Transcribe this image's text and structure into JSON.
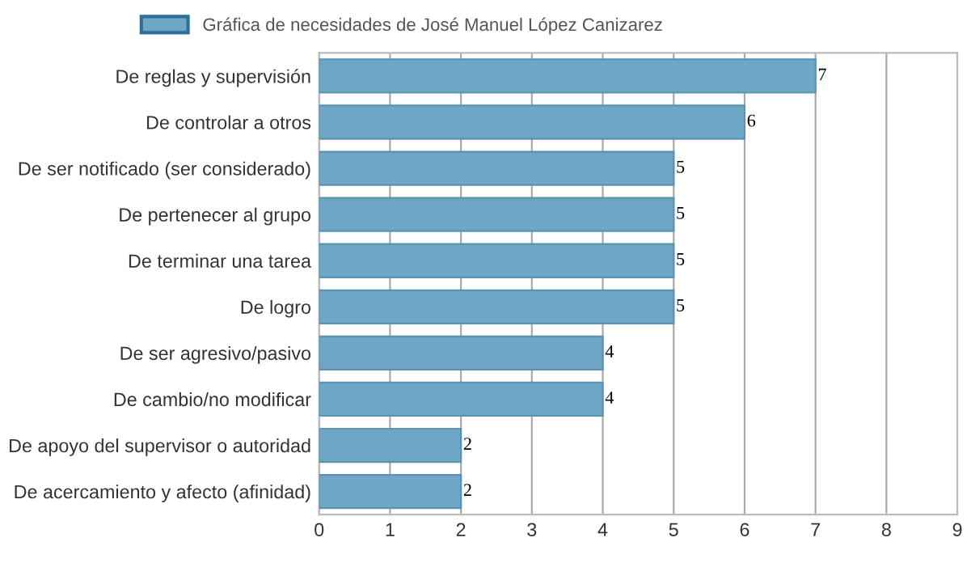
{
  "chart_data": {
    "type": "bar",
    "orientation": "horizontal",
    "categories": [
      "De reglas y supervisión",
      "De controlar a otros",
      "De ser notificado (ser considerado)",
      "De pertenecer al grupo",
      "De terminar una tarea",
      "De logro",
      "De ser agresivo/pasivo",
      "De cambio/no modificar",
      "De apoyo del supervisor o autoridad",
      "De acercamiento y afecto (afinidad)"
    ],
    "series": [
      {
        "name": "Gráfica de necesidades de José Manuel López Canizarez",
        "color": "#6ea6c6",
        "values": [
          7,
          6,
          5,
          5,
          5,
          5,
          4,
          4,
          2,
          2
        ]
      }
    ],
    "xlim": [
      0,
      9
    ],
    "xticks": [
      0,
      1,
      2,
      3,
      4,
      5,
      6,
      7,
      8,
      9
    ],
    "grid": "x",
    "legend": "top",
    "data_labels": true
  }
}
